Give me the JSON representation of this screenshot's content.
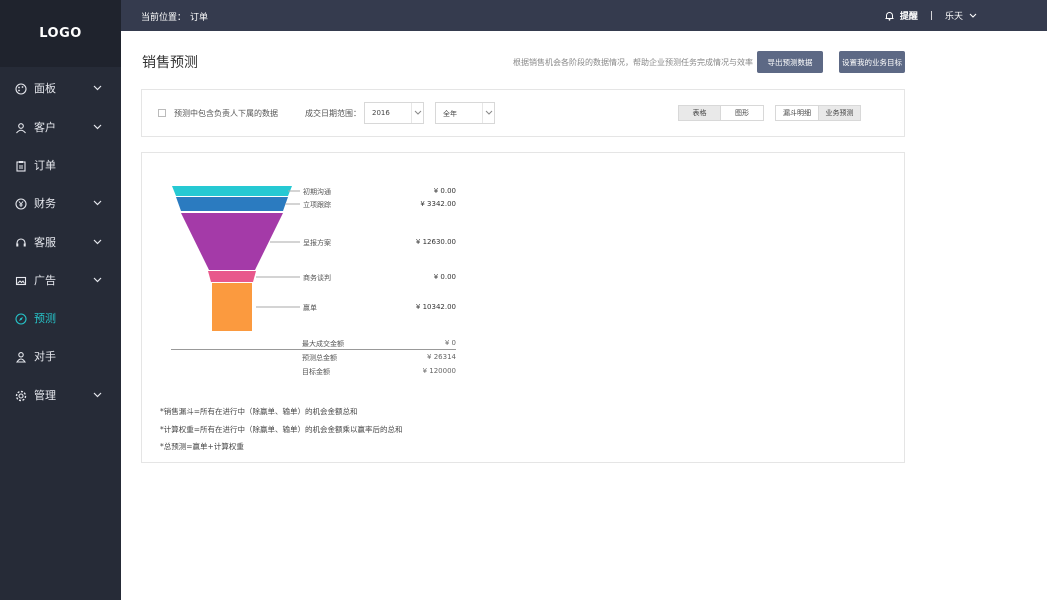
{
  "app": {
    "logo": "LOGO"
  },
  "sidebar": {
    "items": [
      {
        "label": "面板",
        "icon": "palette-icon",
        "has_chevron": true
      },
      {
        "label": "客户",
        "icon": "user-group-icon",
        "has_chevron": true
      },
      {
        "label": "订单",
        "icon": "clipboard-icon",
        "has_chevron": false
      },
      {
        "label": "财务",
        "icon": "yen-circle-icon",
        "has_chevron": true
      },
      {
        "label": "客服",
        "icon": "headset-icon",
        "has_chevron": true
      },
      {
        "label": "广告",
        "icon": "image-icon",
        "has_chevron": true
      },
      {
        "label": "预测",
        "icon": "compass-icon",
        "has_chevron": false,
        "active": true
      },
      {
        "label": "对手",
        "icon": "person-icon",
        "has_chevron": false
      },
      {
        "label": "管理",
        "icon": "gear-icon",
        "has_chevron": true
      }
    ]
  },
  "topbar": {
    "breadcrumb_prefix": "当前位置：",
    "breadcrumb_current": "订单",
    "notify_label": "提醒",
    "separator": "|",
    "user_name": "乐天"
  },
  "header": {
    "title": "销售预测",
    "hint": "根据销售机会各阶段的数据情况，帮助企业预测任务完成情况与效率",
    "export_button": "导出预测数据",
    "target_button": "设置我的业务目标"
  },
  "filters": {
    "include_subordinates_label": "预测中包含负责人下属的数据",
    "date_range_label": "成交日期范围：",
    "year_value": "2016",
    "period_value": "全年",
    "view_toggle": [
      "表格",
      "图形"
    ],
    "mode_toggle": [
      "漏斗明细",
      "业务预测"
    ]
  },
  "chart_data": {
    "type": "funnel",
    "stages": [
      {
        "name": "初期沟通",
        "value": 0.0,
        "display": "¥ 0.00",
        "color": "#26c9d3"
      },
      {
        "name": "立项跟踪",
        "value": 3342.0,
        "display": "¥ 3342.00",
        "color": "#2b7bc0"
      },
      {
        "name": "呈报方案",
        "value": 12630.0,
        "display": "¥ 12630.00",
        "color": "#a43aa8"
      },
      {
        "name": "商务谈判",
        "value": 0.0,
        "display": "¥ 0.00",
        "color": "#e8588c"
      },
      {
        "name": "赢单",
        "value": 10342.0,
        "display": "¥ 10342.00",
        "color": "#fb9a3f"
      }
    ],
    "summary": [
      {
        "label": "最大成交金额",
        "display": "¥  0"
      },
      {
        "label": "预测总金额",
        "display": "¥  26314"
      },
      {
        "label": "目标金额",
        "display": "¥  120000"
      }
    ]
  },
  "notes": [
    "*销售漏斗=所有在进行中（除赢单、输单）的机会金额总和",
    "*计算权重=所有在进行中（除赢单、输单）的机会金额乘以赢率后的总和",
    "*总预测=赢单+计算权重"
  ]
}
